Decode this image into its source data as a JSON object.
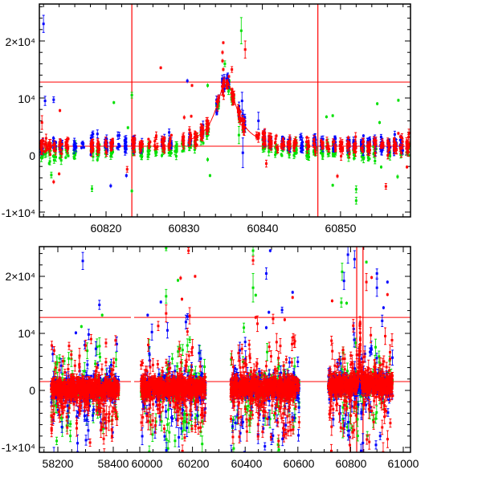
{
  "chart_data": [
    {
      "type": "scatter",
      "title": "",
      "xlabel": "",
      "ylabel": "",
      "xlim": [
        60811.5,
        60858.9
      ],
      "ylim": [
        -10800,
        26500
      ],
      "xtick_labels": [
        "60820",
        "60830",
        "60840",
        "60850"
      ],
      "xticks": [
        60820,
        60830,
        60840,
        60850
      ],
      "ytick_labels": [
        "2×10⁴",
        "10⁴",
        "0",
        "-1×10⁴"
      ],
      "yticks": [
        20000,
        10000,
        0,
        -10000
      ],
      "reference_lines": {
        "vertical": [
          60823.3,
          60847.1
        ],
        "horizontal": [
          12800,
          1550
        ]
      },
      "model": {
        "baseline": 1550,
        "peak": 12800,
        "t0": 60835.4,
        "width": 1.6,
        "range": [
          60830.8,
          60839.6
        ],
        "color": "#ff0000"
      },
      "series_colors": {
        "red": "#ff0000",
        "green": "#00e000",
        "blue": "#0000ff"
      },
      "filter_offsets": {
        "red": 0,
        "green": -1000,
        "blue": 200
      },
      "nights": [
        60811.8,
        60812.3,
        60812.8,
        60813.4,
        60814.2,
        60815.0,
        60816.0,
        60817.0,
        60818.2,
        60819.0,
        60820.0,
        60820.7,
        60821.6,
        60822.5,
        60823.5,
        60824.5,
        60825.5,
        60826.4,
        60827.3,
        60828.2,
        60829.0,
        60829.8,
        60830.7,
        60831.5,
        60832.3,
        60833.0,
        60833.6,
        60834.3,
        60835.0,
        60835.6,
        60836.2,
        60837.0,
        60837.6,
        60839.4,
        60840.2,
        60841.0,
        60841.8,
        60842.6,
        60843.4,
        60844.2,
        60845.0,
        60845.8,
        60846.7,
        60847.6,
        60848.4,
        60849.2,
        60850.1,
        60851.0,
        60851.8,
        60852.8,
        60853.6,
        60854.4,
        60855.3,
        60856.2,
        60857.0,
        60857.8,
        60858.6
      ],
      "outliers": [
        {
          "s": "blue",
          "x": 60812.0,
          "y": 23000,
          "e": 1500
        },
        {
          "s": "blue",
          "x": 60812.2,
          "y": 9500,
          "e": 800
        },
        {
          "s": "blue",
          "x": 60813.3,
          "y": 9700,
          "e": 500
        },
        {
          "s": "blue",
          "x": 60830.4,
          "y": 13000,
          "e": 400
        },
        {
          "s": "blue",
          "x": 60820.6,
          "y": -5400,
          "e": 400
        },
        {
          "s": "blue",
          "x": 60837.5,
          "y": 400,
          "e": 2600
        },
        {
          "s": "blue",
          "x": 60822.6,
          "y": -3600,
          "e": 400
        },
        {
          "s": "blue",
          "x": 60839.5,
          "y": 6000,
          "e": 1500
        },
        {
          "s": "blue",
          "x": 60837.4,
          "y": 9500,
          "e": 1500
        },
        {
          "s": "blue",
          "x": 60818.9,
          "y": 3700,
          "e": 700
        },
        {
          "s": "green",
          "x": 60837.3,
          "y": 21800,
          "e": 2300
        },
        {
          "s": "green",
          "x": 60833.0,
          "y": 12200,
          "e": 400
        },
        {
          "s": "green",
          "x": 60821.0,
          "y": 9200,
          "e": 300
        },
        {
          "s": "green",
          "x": 60823.3,
          "y": 10500,
          "e": 500
        },
        {
          "s": "green",
          "x": 60823.3,
          "y": -6300,
          "e": 400
        },
        {
          "s": "green",
          "x": 60818.2,
          "y": -5900,
          "e": 500
        },
        {
          "s": "green",
          "x": 60833.3,
          "y": -3600,
          "e": 300
        },
        {
          "s": "green",
          "x": 60833.0,
          "y": -800,
          "e": 400
        },
        {
          "s": "green",
          "x": 60848.2,
          "y": 6700,
          "e": 300
        },
        {
          "s": "green",
          "x": 60849.0,
          "y": 6900,
          "e": 300
        },
        {
          "s": "green",
          "x": 60854.7,
          "y": 9000,
          "e": 300
        },
        {
          "s": "green",
          "x": 60857.4,
          "y": 9600,
          "e": 300
        },
        {
          "s": "green",
          "x": 60855.0,
          "y": 5700,
          "e": 300
        },
        {
          "s": "green",
          "x": 60849.0,
          "y": -5300,
          "e": 300
        },
        {
          "s": "green",
          "x": 60852.0,
          "y": -8000,
          "e": 600
        },
        {
          "s": "green",
          "x": 60852.0,
          "y": -6000,
          "e": 600
        },
        {
          "s": "green",
          "x": 60855.2,
          "y": -2100,
          "e": 300
        },
        {
          "s": "green",
          "x": 60857.3,
          "y": -3800,
          "e": 400
        },
        {
          "s": "green",
          "x": 60822.8,
          "y": 4800,
          "e": 300
        },
        {
          "s": "green",
          "x": 60813.0,
          "y": -3500,
          "e": 500
        },
        {
          "s": "green",
          "x": 60835.2,
          "y": 16000,
          "e": 500
        },
        {
          "s": "green",
          "x": 60837.0,
          "y": 3500,
          "e": 1500
        },
        {
          "s": "red",
          "x": 60827.0,
          "y": 15300,
          "e": 300
        },
        {
          "s": "red",
          "x": 60831.0,
          "y": 12200,
          "e": 300
        },
        {
          "s": "red",
          "x": 60814.1,
          "y": 7800,
          "e": 300
        },
        {
          "s": "red",
          "x": 60813.3,
          "y": -4700,
          "e": 400
        },
        {
          "s": "red",
          "x": 60835.0,
          "y": 19700,
          "e": 300
        },
        {
          "s": "red",
          "x": 60834.9,
          "y": 18000,
          "e": 400
        },
        {
          "s": "red",
          "x": 60837.8,
          "y": 18500,
          "e": 1500
        },
        {
          "s": "red",
          "x": 60836.1,
          "y": 15000,
          "e": 500
        },
        {
          "s": "red",
          "x": 60814.0,
          "y": -3300,
          "e": 300
        },
        {
          "s": "red",
          "x": 60849.6,
          "y": -3700,
          "e": 400
        },
        {
          "s": "red",
          "x": 60855.8,
          "y": -5500,
          "e": 500
        },
        {
          "s": "red",
          "x": 60857.4,
          "y": 3800,
          "e": 300
        },
        {
          "s": "red",
          "x": 60858.5,
          "y": -2100,
          "e": 300
        },
        {
          "s": "red",
          "x": 60840.5,
          "y": -1500,
          "e": 600
        },
        {
          "s": "red",
          "x": 60830.0,
          "y": 6600,
          "e": 400
        },
        {
          "s": "red",
          "x": 60830.9,
          "y": 6800,
          "e": 300
        },
        {
          "s": "red",
          "x": 60811.8,
          "y": 5700,
          "e": 1200
        },
        {
          "s": "red",
          "x": 60822.7,
          "y": -2500,
          "e": 500
        },
        {
          "s": "red",
          "x": 60834.9,
          "y": 16500,
          "e": 400
        },
        {
          "s": "red",
          "x": 60835.0,
          "y": 15000,
          "e": 400
        }
      ]
    },
    {
      "type": "scatter",
      "title": "",
      "xlabel": "",
      "ylabel": "",
      "x_axis_break": {
        "segments": [
          [
            58130,
            58465
          ],
          [
            59979,
            61027
          ]
        ]
      },
      "ylim": [
        -10800,
        25200
      ],
      "xtick_labels": [
        "58200",
        "58400",
        "60000",
        "60200",
        "60400",
        "60600",
        "60800",
        "61000"
      ],
      "xticks": [
        58200,
        58400,
        60000,
        60200,
        60400,
        60600,
        60800,
        61000
      ],
      "ytick_labels": [
        "2×10⁴",
        "10⁴",
        "0",
        "-1×10⁴"
      ],
      "yticks": [
        20000,
        10000,
        0,
        -10000
      ],
      "reference_lines": {
        "vertical": [
          60823.3,
          60847.1
        ],
        "horizontal": [
          12800,
          1550
        ]
      },
      "seasons": [
        {
          "start": 58175,
          "end": 58420,
          "baseline": 300
        },
        {
          "start": 60005,
          "end": 60250,
          "baseline": 500
        },
        {
          "start": 60345,
          "end": 60605,
          "baseline": 500
        },
        {
          "start": 60715,
          "end": 60960,
          "baseline": 1000
        }
      ],
      "outliers": [
        {
          "s": "blue",
          "x": 58290,
          "y": 22700,
          "e": 1500
        },
        {
          "s": "blue",
          "x": 58350,
          "y": 15000,
          "e": 800
        },
        {
          "s": "green",
          "x": 58360,
          "y": 13200,
          "e": 300
        },
        {
          "s": "blue",
          "x": 58265,
          "y": 10100,
          "e": 300
        },
        {
          "s": "green",
          "x": 58285,
          "y": 11200,
          "e": 300
        },
        {
          "s": "red",
          "x": 58320,
          "y": 9000,
          "e": 800
        },
        {
          "s": "green",
          "x": 60100,
          "y": 25000,
          "e": 500
        },
        {
          "s": "red",
          "x": 60185,
          "y": 24500,
          "e": 500
        },
        {
          "s": "red",
          "x": 60210,
          "y": 20000,
          "e": 300
        },
        {
          "s": "red",
          "x": 60155,
          "y": 19700,
          "e": 400
        },
        {
          "s": "green",
          "x": 60145,
          "y": 19300,
          "e": 300
        },
        {
          "s": "blue",
          "x": 60175,
          "y": 12000,
          "e": 1200
        },
        {
          "s": "green",
          "x": 60100,
          "y": 16500,
          "e": 1200
        },
        {
          "s": "red",
          "x": 60160,
          "y": 16000,
          "e": 300
        },
        {
          "s": "blue",
          "x": 60080,
          "y": 15500,
          "e": 300
        },
        {
          "s": "blue",
          "x": 60030,
          "y": 13200,
          "e": 300
        },
        {
          "s": "red",
          "x": 60070,
          "y": 11300,
          "e": 800
        },
        {
          "s": "red",
          "x": 60100,
          "y": 13500,
          "e": 1500
        },
        {
          "s": "green",
          "x": 60430,
          "y": 24500,
          "e": 800
        },
        {
          "s": "red",
          "x": 60430,
          "y": 22800,
          "e": 700
        },
        {
          "s": "blue",
          "x": 60495,
          "y": 24500,
          "e": 300
        },
        {
          "s": "blue",
          "x": 60480,
          "y": 20500,
          "e": 1000
        },
        {
          "s": "green",
          "x": 60430,
          "y": 18000,
          "e": 2500
        },
        {
          "s": "blue",
          "x": 60580,
          "y": 17200,
          "e": 300
        },
        {
          "s": "red",
          "x": 60580,
          "y": 16300,
          "e": 300
        },
        {
          "s": "green",
          "x": 60440,
          "y": 16700,
          "e": 300
        },
        {
          "s": "blue",
          "x": 60540,
          "y": 14100,
          "e": 500
        },
        {
          "s": "blue",
          "x": 60490,
          "y": 13700,
          "e": 300
        },
        {
          "s": "red",
          "x": 60440,
          "y": 12800,
          "e": 300
        },
        {
          "s": "red",
          "x": 60550,
          "y": 12400,
          "e": 300
        },
        {
          "s": "blue",
          "x": 60480,
          "y": 11000,
          "e": 300
        },
        {
          "s": "green",
          "x": 60395,
          "y": 11000,
          "e": 800
        },
        {
          "s": "blue",
          "x": 60400,
          "y": 8500,
          "e": 800
        },
        {
          "s": "blue",
          "x": 60790,
          "y": 23800,
          "e": 1500
        },
        {
          "s": "blue",
          "x": 60815,
          "y": 23000,
          "e": 1500
        },
        {
          "s": "green",
          "x": 60768,
          "y": 20800,
          "e": 1500
        },
        {
          "s": "blue",
          "x": 60775,
          "y": 19200,
          "e": 1500
        },
        {
          "s": "green",
          "x": 60860,
          "y": 22500,
          "e": 300
        },
        {
          "s": "red",
          "x": 60880,
          "y": 19800,
          "e": 300
        },
        {
          "s": "red",
          "x": 60860,
          "y": 19000,
          "e": 1500
        },
        {
          "s": "blue",
          "x": 60900,
          "y": 20500,
          "e": 800
        },
        {
          "s": "blue",
          "x": 60900,
          "y": 18000,
          "e": 1500
        },
        {
          "s": "blue",
          "x": 60940,
          "y": 19000,
          "e": 300
        },
        {
          "s": "red",
          "x": 60940,
          "y": 16800,
          "e": 300
        },
        {
          "s": "red",
          "x": 60730,
          "y": 15700,
          "e": 300
        },
        {
          "s": "green",
          "x": 60765,
          "y": 15400,
          "e": 800
        },
        {
          "s": "green",
          "x": 60785,
          "y": 15300,
          "e": 300
        },
        {
          "s": "blue",
          "x": 60920,
          "y": 12200,
          "e": 1000
        },
        {
          "s": "blue",
          "x": 60925,
          "y": 14500,
          "e": 300
        }
      ]
    }
  ]
}
